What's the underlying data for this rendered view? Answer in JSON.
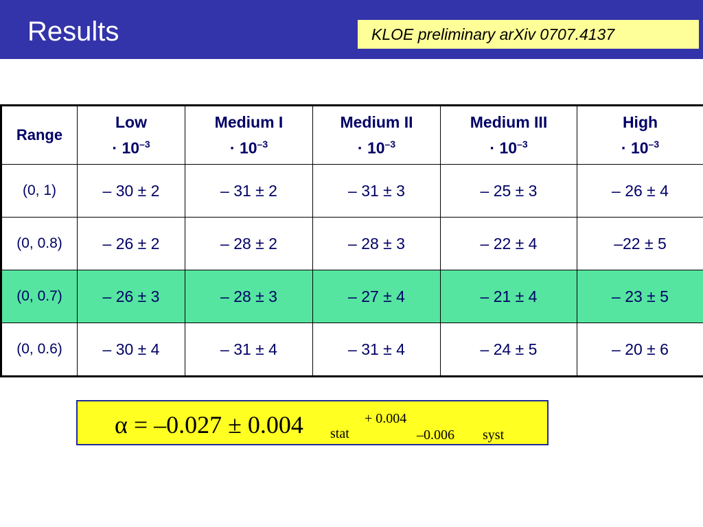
{
  "slide": {
    "title": "Results",
    "reference": "KLOE preliminary arXiv 0707.4137",
    "header_color": "#3333aa",
    "reference_bg": "#ffff99",
    "highlight_color": "#55e5a0"
  },
  "table": {
    "columns": [
      {
        "name": "Range"
      },
      {
        "name": "Low",
        "scale": "· 10",
        "exp": "–3"
      },
      {
        "name": "Medium I",
        "scale": "· 10",
        "exp": "–3"
      },
      {
        "name": "Medium II",
        "scale": "· 10",
        "exp": "–3"
      },
      {
        "name": "Medium III",
        "scale": "· 10",
        "exp": "–3"
      },
      {
        "name": "High",
        "scale": "· 10",
        "exp": "–3"
      }
    ],
    "rows": [
      {
        "range": "(0, 1)",
        "values": [
          "– 30 ± 2",
          "– 31 ± 2",
          "– 31 ± 3",
          "– 25 ± 3",
          "– 26 ± 4"
        ],
        "highlighted": false
      },
      {
        "range": "(0, 0.8)",
        "values": [
          "– 26 ± 2",
          "– 28 ± 2",
          "– 28 ± 3",
          "– 22 ± 4",
          "–22 ± 5"
        ],
        "highlighted": false
      },
      {
        "range": "(0, 0.7)",
        "values": [
          "– 26 ± 3",
          "– 28 ± 3",
          "– 27 ± 4",
          "– 21 ± 4",
          "– 23 ± 5"
        ],
        "highlighted": true
      },
      {
        "range": "(0, 0.6)",
        "values": [
          "– 30 ± 4",
          "– 31 ± 4",
          "– 31 ± 4",
          "– 24 ± 5",
          "– 20 ± 6"
        ],
        "highlighted": false
      }
    ]
  },
  "formula": {
    "main": "α = –0.027 ± 0.004",
    "stat_label": "stat",
    "syst_plus": "+ 0.004",
    "syst_minus": "–0.006",
    "syst_label": "syst",
    "background": "#ffff22"
  }
}
